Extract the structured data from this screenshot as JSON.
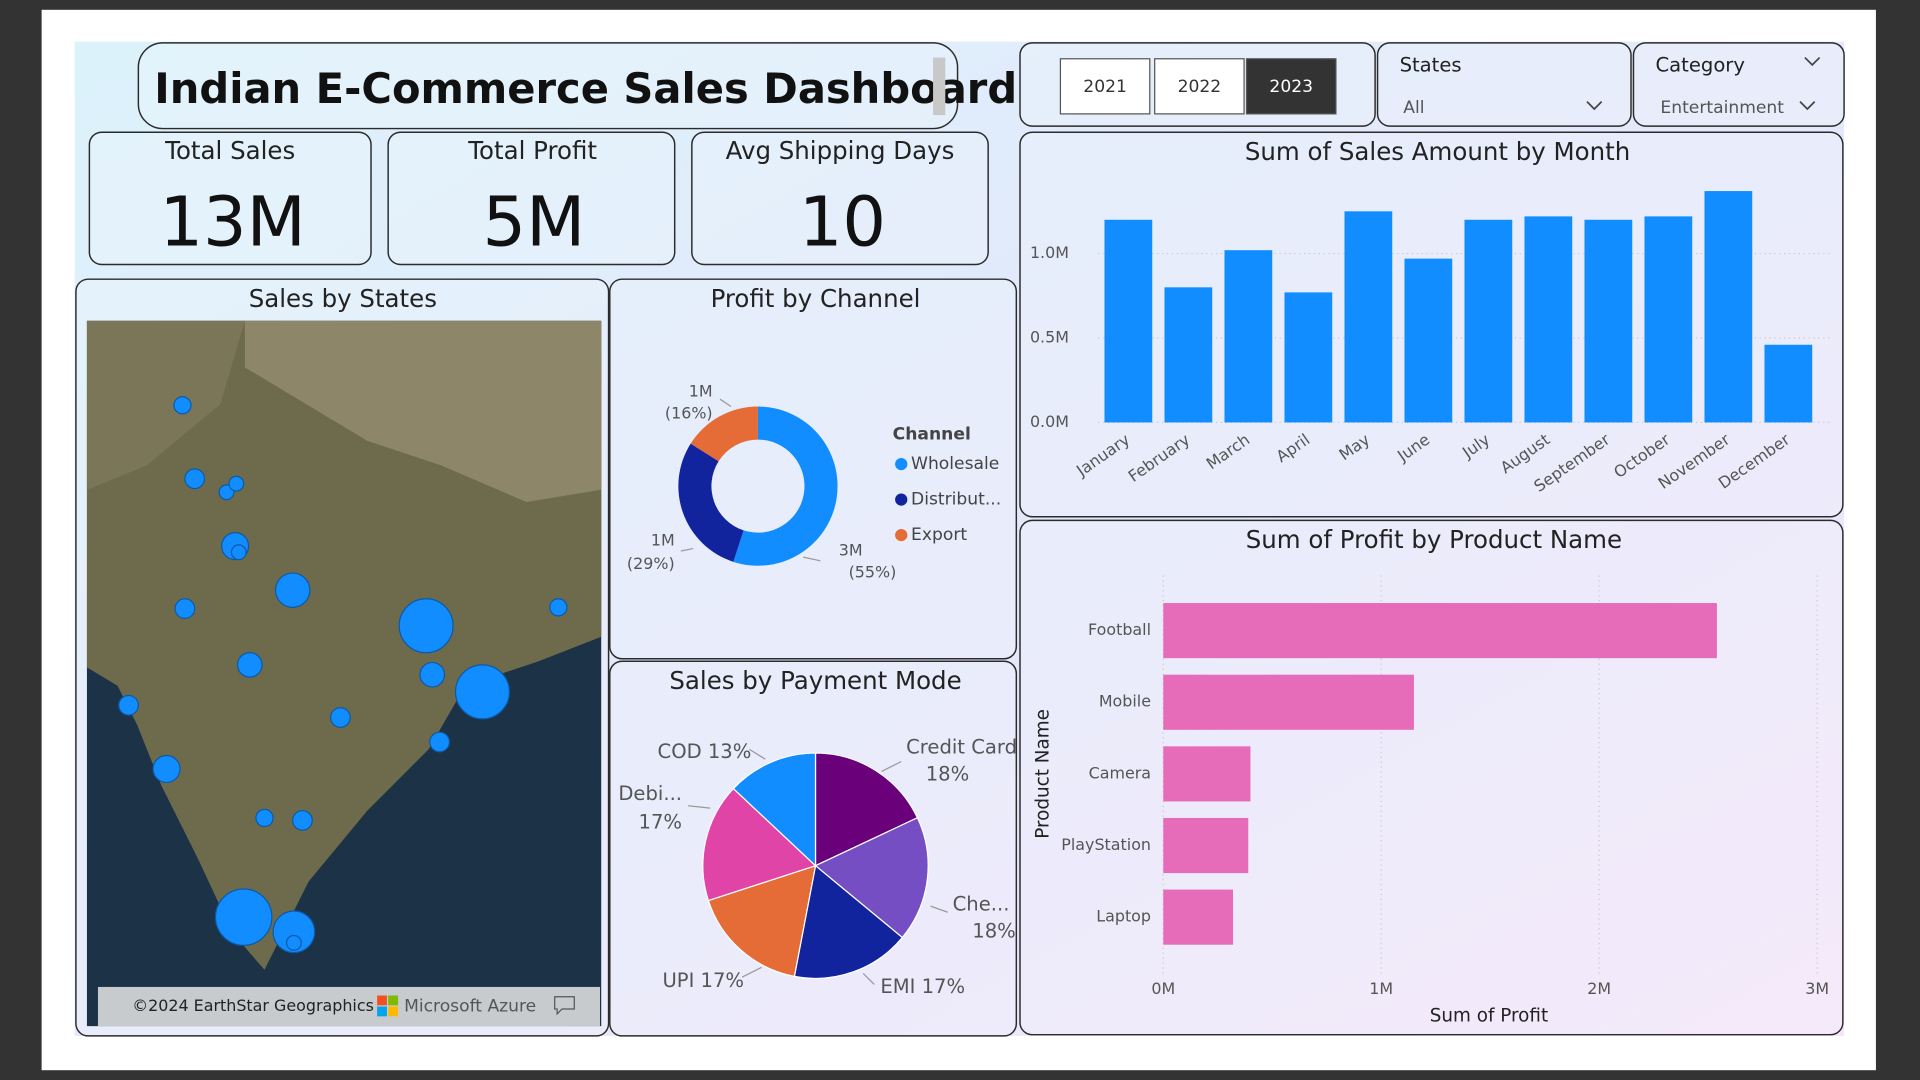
{
  "header": {
    "title": "Indian E-Commerce Sales Dashboard"
  },
  "kpis": [
    {
      "label": "Total Sales",
      "value": "13M"
    },
    {
      "label": "Total Profit",
      "value": "5M"
    },
    {
      "label": "Avg Shipping Days",
      "value": "10"
    }
  ],
  "year_slicer": [
    {
      "label": "2021",
      "selected": false
    },
    {
      "label": "2022",
      "selected": false
    },
    {
      "label": "2023",
      "selected": true
    }
  ],
  "dropdowns": [
    {
      "title": "States",
      "value": "All"
    },
    {
      "title": "Category",
      "value": "Entertainment"
    }
  ],
  "map": {
    "title": "Sales by States",
    "attribution": "©2024 EarthStar Geographics",
    "provider": "Microsoft Azure"
  },
  "chart_data": [
    {
      "type": "donut",
      "title": "Profit by Channel",
      "legend_title": "Channel",
      "categories": [
        "Wholesale",
        "Distribut...",
        "Export"
      ],
      "values": [
        2640000,
        1390000,
        770000
      ],
      "value_labels": [
        "3M",
        "1M",
        "1M"
      ],
      "percent_labels": [
        "(55%)",
        "(29%)",
        "(16%)"
      ],
      "colors": [
        "#118DFF",
        "#12239E",
        "#E66C37"
      ]
    },
    {
      "type": "pie",
      "title": "Sales by Payment Mode",
      "categories": [
        "Credit Card",
        "Che...",
        "EMI",
        "UPI",
        "Debi...",
        "COD"
      ],
      "values": [
        18,
        18,
        17,
        17,
        17,
        13
      ],
      "value_labels": [
        "18%",
        "18%",
        "17%",
        "17%",
        "17%",
        "13%"
      ],
      "colors": [
        "#6B007B",
        "#744EC2",
        "#12239E",
        "#E66C37",
        "#E044A7",
        "#118DFF"
      ]
    },
    {
      "type": "bar",
      "orientation": "vertical",
      "title": "Sum of Sales Amount by Month",
      "categories": [
        "January",
        "February",
        "March",
        "April",
        "May",
        "June",
        "July",
        "August",
        "September",
        "October",
        "November",
        "December"
      ],
      "values": [
        1200000,
        800000,
        1020000,
        770000,
        1250000,
        970000,
        1200000,
        1220000,
        1200000,
        1220000,
        1370000,
        460000
      ],
      "color": "#118DFF",
      "ylim": [
        0,
        1450000
      ],
      "yticks": [
        {
          "value": 0,
          "label": "0.0M"
        },
        {
          "value": 500000,
          "label": "0.5M"
        },
        {
          "value": 1000000,
          "label": "1.0M"
        }
      ],
      "grid": true
    },
    {
      "type": "bar",
      "orientation": "horizontal",
      "title": "Sum of Profit by Product Name",
      "x_label": "Sum of Profit",
      "y_label": "Product Name",
      "categories": [
        "Football",
        "Mobile",
        "Camera",
        "PlayStation",
        "Laptop"
      ],
      "values": [
        2540000,
        1150000,
        400000,
        390000,
        320000
      ],
      "color": "#E66BB9",
      "xlim": [
        0,
        3000000
      ],
      "xticks": [
        {
          "value": 0,
          "label": "0M"
        },
        {
          "value": 1000000,
          "label": "1M"
        },
        {
          "value": 2000000,
          "label": "2M"
        },
        {
          "value": 3000000,
          "label": "3M"
        }
      ],
      "grid": true
    }
  ]
}
